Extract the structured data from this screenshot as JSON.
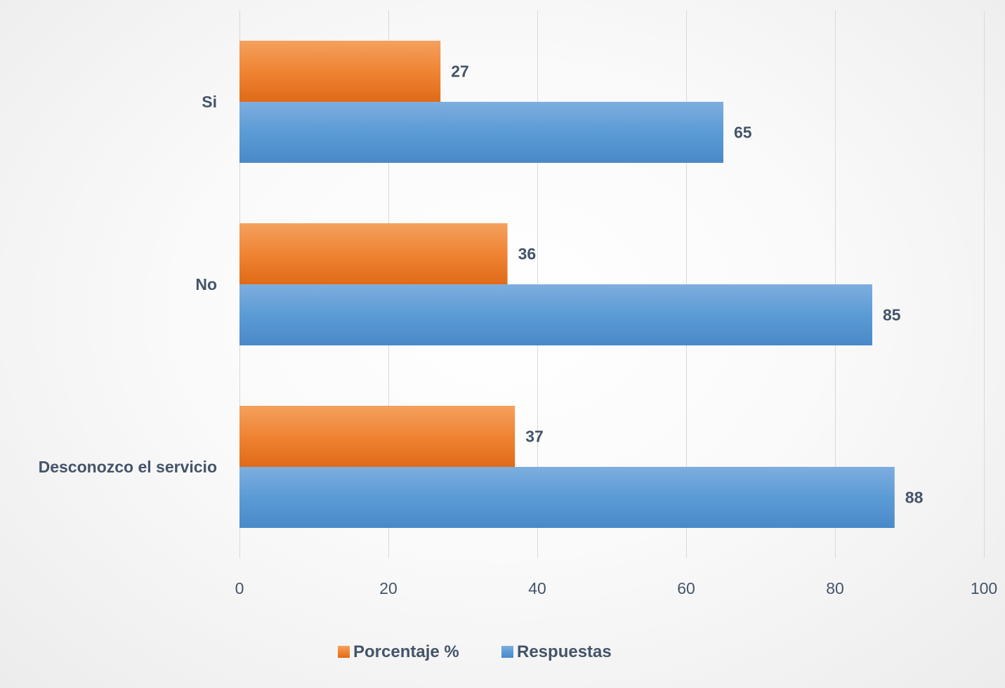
{
  "chart_data": {
    "type": "bar",
    "orientation": "horizontal",
    "categories": [
      "Si",
      "No",
      "Desconozco el servicio"
    ],
    "series": [
      {
        "name": "Porcentaje %",
        "values": [
          27,
          36,
          37
        ],
        "color": "#ed7d31"
      },
      {
        "name": "Respuestas",
        "values": [
          65,
          85,
          88
        ],
        "color": "#5b9bd5"
      }
    ],
    "xlim": [
      0,
      100
    ],
    "x_ticks": [
      0,
      20,
      40,
      60,
      80,
      100
    ],
    "grid": true,
    "legend_position": "bottom",
    "data_labels": true
  }
}
